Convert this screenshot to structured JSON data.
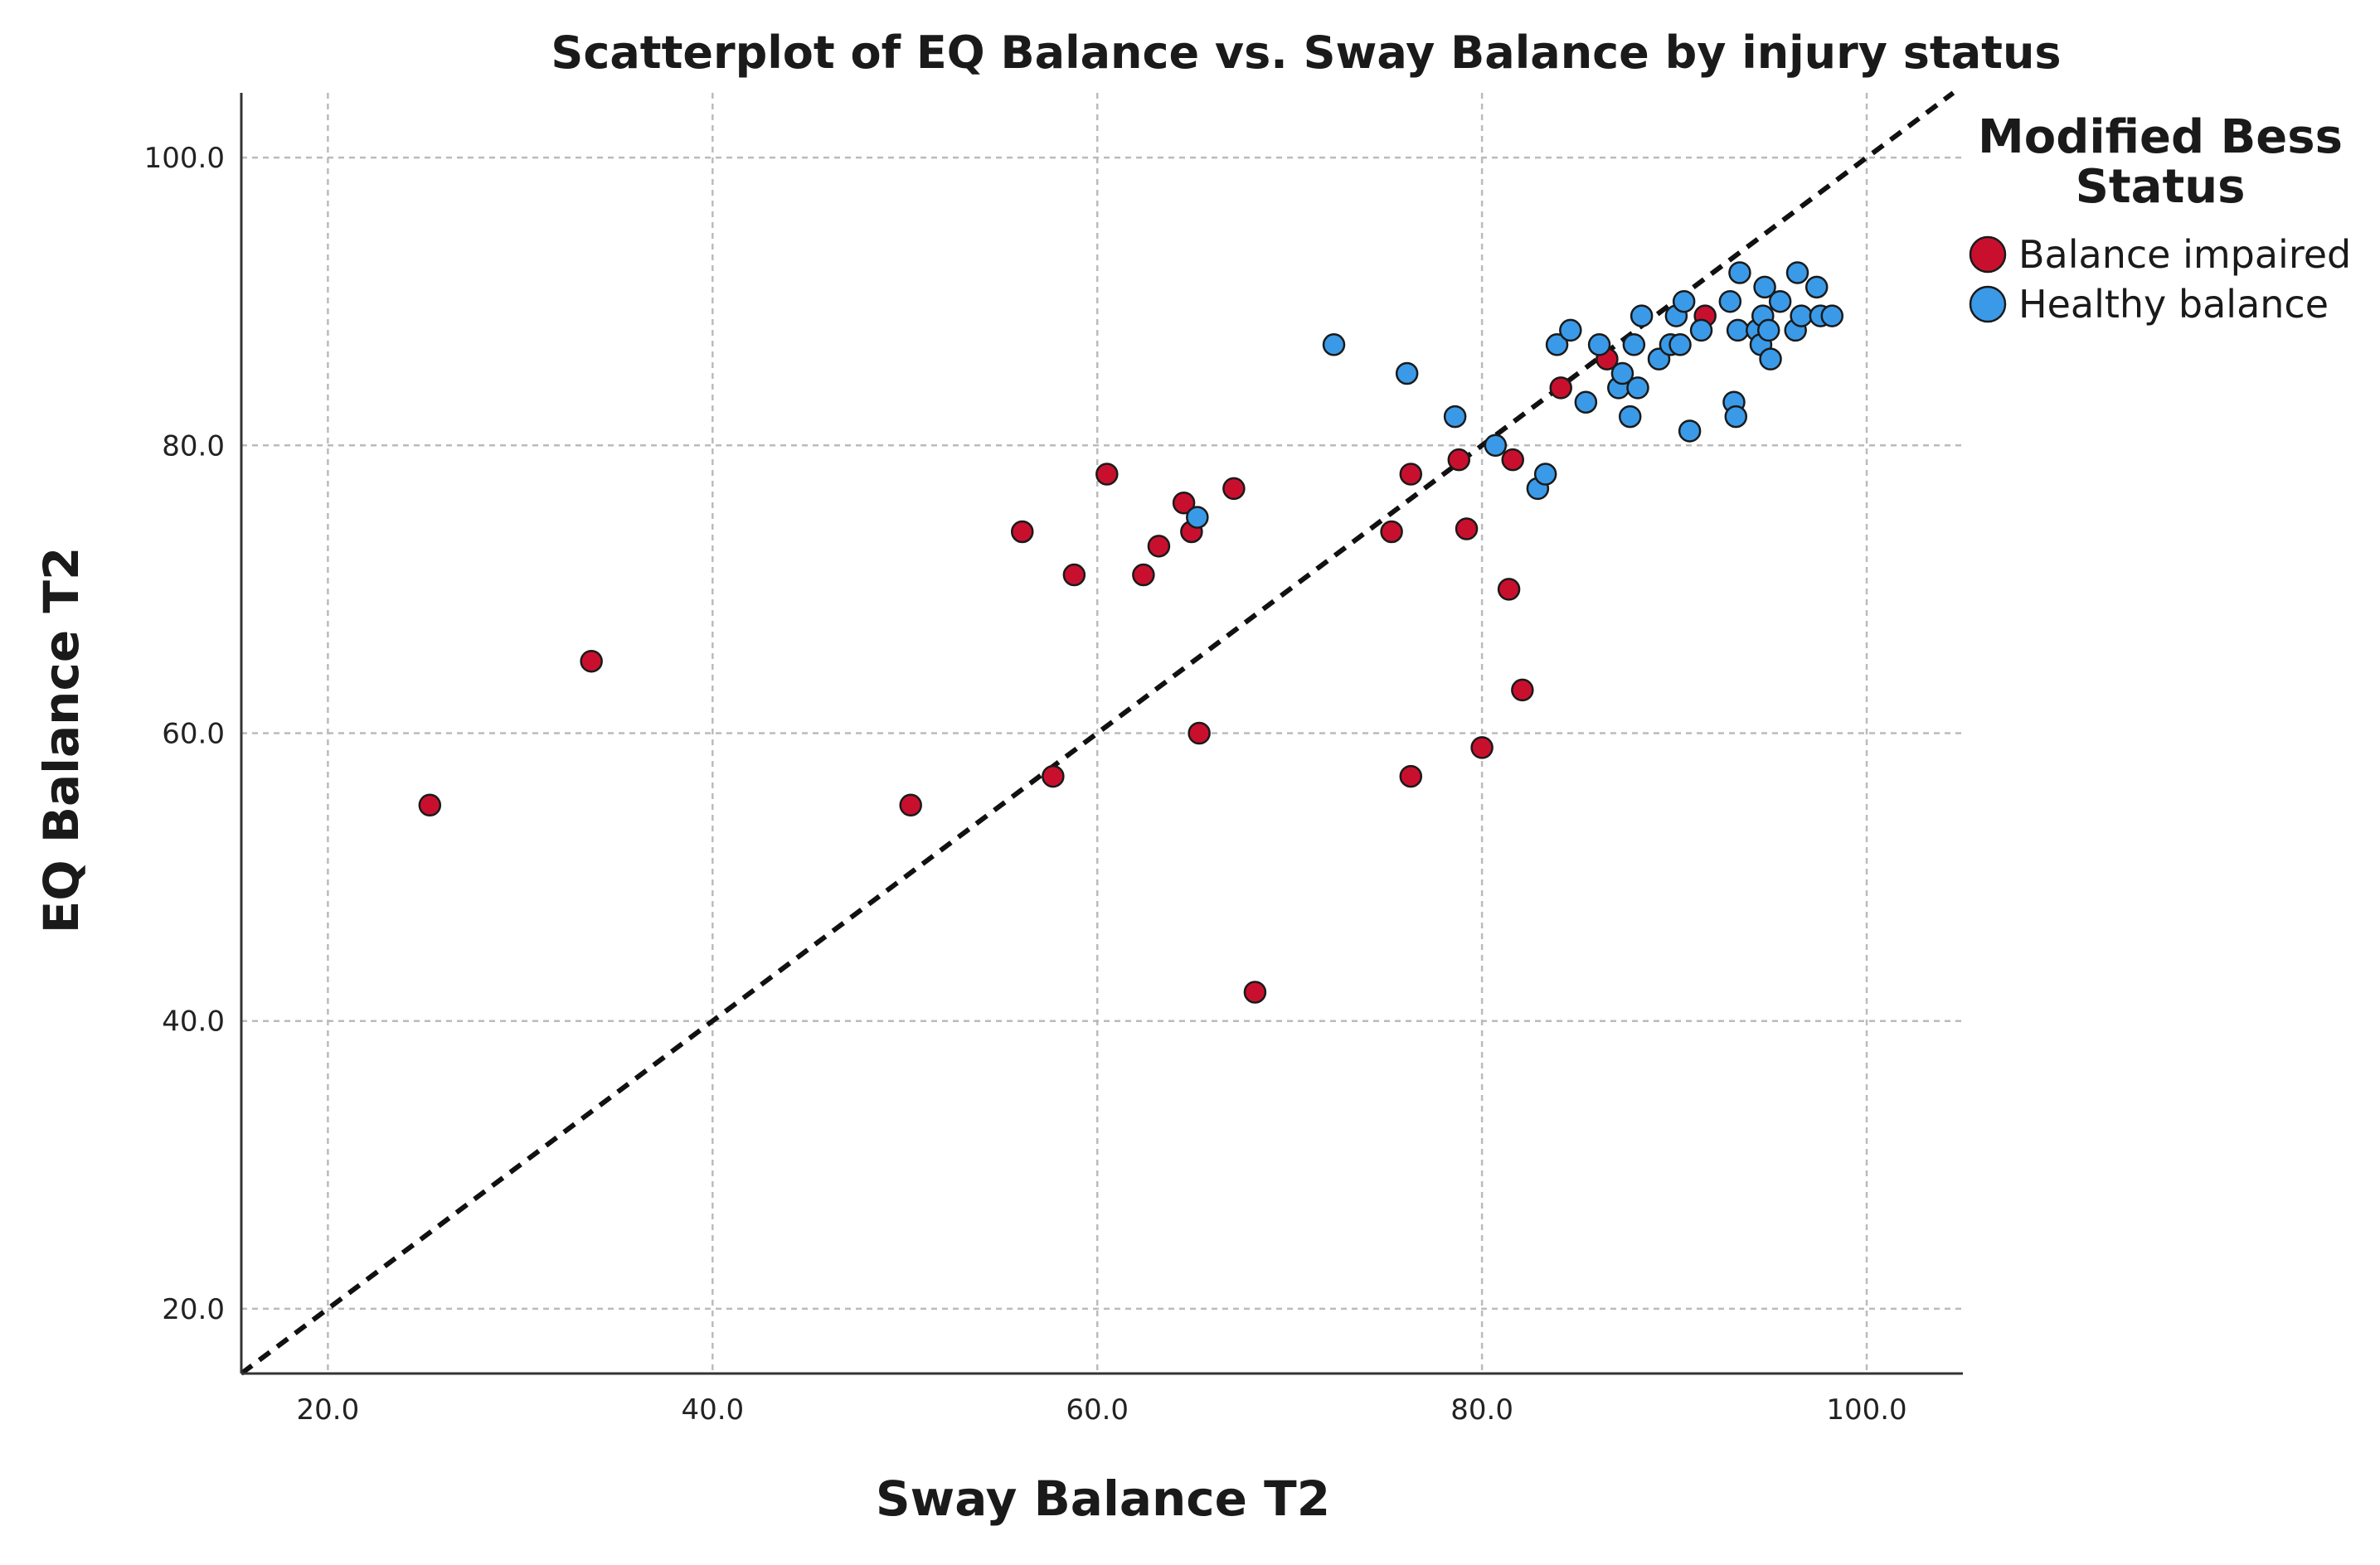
{
  "chart_data": {
    "type": "scatter",
    "title": "Scatterplot of EQ Balance vs. Sway Balance by injury status",
    "xlabel": "Sway Balance T2",
    "ylabel": "EQ Balance T2",
    "xlim": [
      15.5,
      105
    ],
    "ylim": [
      15.5,
      104.5
    ],
    "xticks": [
      20,
      40,
      60,
      80,
      100
    ],
    "yticks": [
      20,
      40,
      60,
      80,
      100
    ],
    "xtick_labels": [
      "20.0",
      "40.0",
      "60.0",
      "80.0",
      "100.0"
    ],
    "ytick_labels": [
      "20.0",
      "40.0",
      "60.0",
      "80.0",
      "100.0"
    ],
    "grid": true,
    "reference_line": "y = x (dashed)",
    "legend": {
      "title_lines": [
        "Modified Bess",
        "Status"
      ],
      "position": "top-right outside plot",
      "entries": [
        {
          "label": "Balance impaired",
          "color": "#c8102e"
        },
        {
          "label": "Healthy balance",
          "color": "#3a9ae8"
        }
      ]
    },
    "series": [
      {
        "name": "Balance impaired",
        "color": "#c8102e",
        "points": [
          [
            25.3,
            55
          ],
          [
            33.7,
            65
          ],
          [
            50.3,
            55
          ],
          [
            56.1,
            74
          ],
          [
            57.7,
            57
          ],
          [
            58.8,
            71
          ],
          [
            60.5,
            78
          ],
          [
            62.4,
            71
          ],
          [
            63.2,
            73
          ],
          [
            64.5,
            76
          ],
          [
            64.9,
            74
          ],
          [
            65.3,
            60
          ],
          [
            67.1,
            77
          ],
          [
            68.2,
            42
          ],
          [
            75.3,
            74
          ],
          [
            76.3,
            78
          ],
          [
            76.3,
            57
          ],
          [
            78.8,
            79
          ],
          [
            79.2,
            74.2
          ],
          [
            80.0,
            59
          ],
          [
            81.4,
            70
          ],
          [
            81.6,
            79
          ],
          [
            82.1,
            63
          ],
          [
            84.1,
            84
          ],
          [
            86.5,
            86
          ],
          [
            91.6,
            89
          ]
        ]
      },
      {
        "name": "Healthy balance",
        "color": "#3a9ae8",
        "points": [
          [
            65.2,
            75
          ],
          [
            72.3,
            87
          ],
          [
            76.1,
            85
          ],
          [
            78.6,
            82
          ],
          [
            80.7,
            80
          ],
          [
            82.9,
            77
          ],
          [
            83.3,
            78
          ],
          [
            83.9,
            87
          ],
          [
            84.6,
            88
          ],
          [
            85.4,
            83
          ],
          [
            86.1,
            87
          ],
          [
            87.1,
            84
          ],
          [
            87.3,
            85
          ],
          [
            87.7,
            82
          ],
          [
            87.9,
            87
          ],
          [
            88.1,
            84
          ],
          [
            88.3,
            89
          ],
          [
            89.2,
            86
          ],
          [
            89.8,
            87
          ],
          [
            90.1,
            89
          ],
          [
            90.3,
            87
          ],
          [
            90.5,
            90
          ],
          [
            90.8,
            81
          ],
          [
            91.4,
            88
          ],
          [
            92.9,
            90
          ],
          [
            93.1,
            83
          ],
          [
            93.2,
            82
          ],
          [
            93.3,
            88
          ],
          [
            93.4,
            92
          ],
          [
            94.3,
            88
          ],
          [
            94.5,
            87
          ],
          [
            94.6,
            89
          ],
          [
            94.7,
            91
          ],
          [
            94.9,
            88
          ],
          [
            95.0,
            86
          ],
          [
            95.5,
            90
          ],
          [
            96.3,
            88
          ],
          [
            96.4,
            92
          ],
          [
            96.6,
            89
          ],
          [
            97.4,
            91
          ],
          [
            97.6,
            89
          ],
          [
            98.2,
            89
          ]
        ]
      }
    ]
  }
}
